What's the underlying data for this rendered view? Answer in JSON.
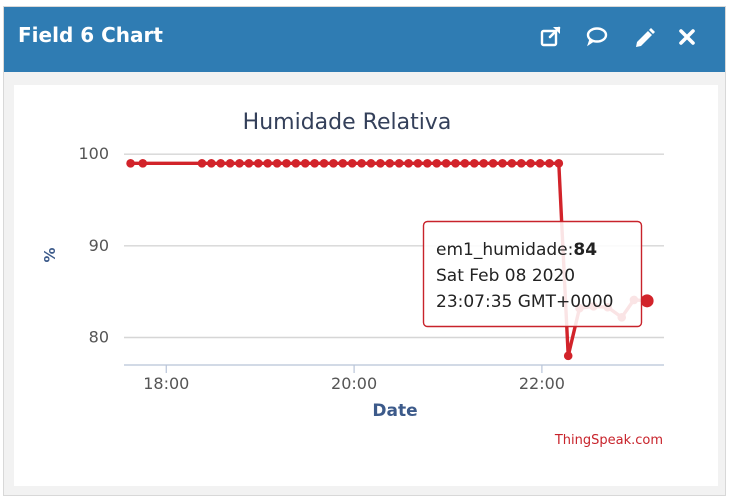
{
  "header": {
    "title": "Field 6 Chart",
    "icons": [
      "external-link-icon",
      "comment-icon",
      "pencil-icon",
      "close-icon"
    ],
    "background": "#2f7cb3"
  },
  "credit": "ThingSpeak.com",
  "tooltip": {
    "series_label": "em1_humidade:",
    "value": "84",
    "date_line": "Sat Feb 08 2020",
    "time_line": "23:07:35 GMT+0000"
  },
  "chart_data": {
    "type": "line",
    "title": "Humidade Relativa",
    "xlabel": "Date",
    "ylabel": "%",
    "x_ticks": [
      "18:00",
      "20:00",
      "22:00"
    ],
    "x_tick_hours": [
      18,
      20,
      22
    ],
    "y_ticks": [
      80,
      90,
      100
    ],
    "xlim_hours": [
      17.55,
      23.3
    ],
    "ylim": [
      77,
      101
    ],
    "grid": true,
    "legend": "none",
    "line_color": "#d2232a",
    "series": [
      {
        "points": [
          [
            17.62,
            99
          ],
          [
            17.75,
            99
          ],
          [
            18.38,
            99
          ],
          [
            18.48,
            99
          ],
          [
            18.58,
            99
          ],
          [
            18.68,
            99
          ],
          [
            18.78,
            99
          ],
          [
            18.88,
            99
          ],
          [
            18.98,
            99
          ],
          [
            19.08,
            99
          ],
          [
            19.18,
            99
          ],
          [
            19.28,
            99
          ],
          [
            19.38,
            99
          ],
          [
            19.48,
            99
          ],
          [
            19.58,
            99
          ],
          [
            19.68,
            99
          ],
          [
            19.78,
            99
          ],
          [
            19.88,
            99
          ],
          [
            19.98,
            99
          ],
          [
            20.08,
            99
          ],
          [
            20.18,
            99
          ],
          [
            20.28,
            99
          ],
          [
            20.38,
            99
          ],
          [
            20.48,
            99
          ],
          [
            20.58,
            99
          ],
          [
            20.68,
            99
          ],
          [
            20.78,
            99
          ],
          [
            20.88,
            99
          ],
          [
            20.98,
            99
          ],
          [
            21.08,
            99
          ],
          [
            21.18,
            99
          ],
          [
            21.28,
            99
          ],
          [
            21.38,
            99
          ],
          [
            21.48,
            99
          ],
          [
            21.58,
            99
          ],
          [
            21.68,
            99
          ],
          [
            21.78,
            99
          ],
          [
            21.88,
            99
          ],
          [
            21.98,
            99
          ],
          [
            22.08,
            99
          ],
          [
            22.18,
            99
          ],
          [
            22.28,
            78
          ],
          [
            22.4,
            83.2
          ],
          [
            22.55,
            83.4
          ],
          [
            22.7,
            83.3
          ],
          [
            22.85,
            82.2
          ],
          [
            22.98,
            84.1
          ],
          [
            23.12,
            84
          ]
        ],
        "highlight_index": 47
      }
    ]
  }
}
